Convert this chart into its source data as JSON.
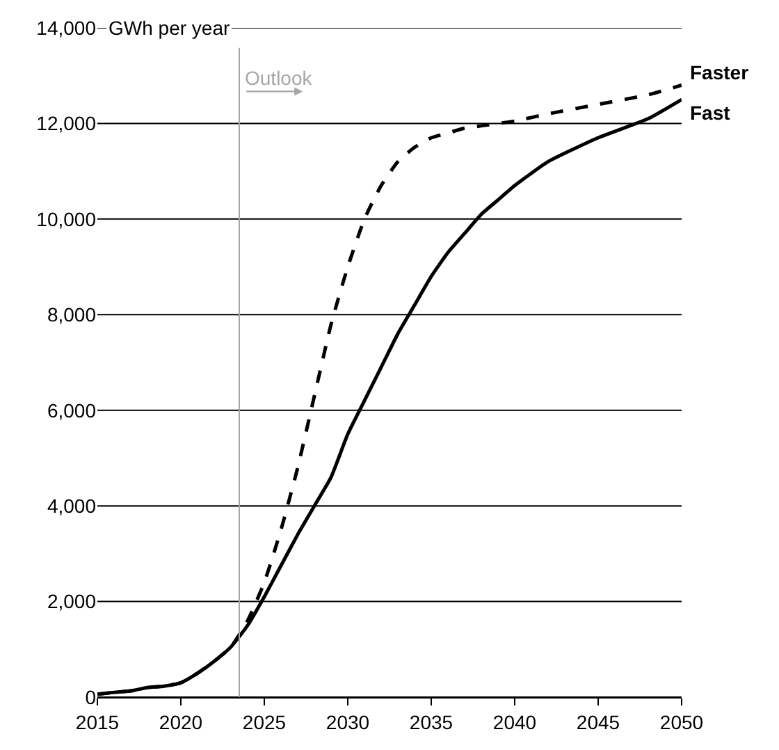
{
  "chart_data": {
    "type": "line",
    "ylabel": "GWh per year",
    "series": [
      {
        "name": "Faster",
        "color": "#000000",
        "line_style": "dashed",
        "x": [
          2015,
          2016,
          2017,
          2018,
          2019,
          2020,
          2021,
          2022,
          2023,
          2024,
          2025,
          2026,
          2027,
          2028,
          2029,
          2030,
          2031,
          2032,
          2033,
          2034,
          2035,
          2036,
          2037,
          2038,
          2040,
          2042,
          2045,
          2048,
          2050
        ],
        "values": [
          60,
          100,
          130,
          200,
          230,
          300,
          500,
          750,
          1050,
          1600,
          2400,
          3500,
          4800,
          6300,
          7800,
          9000,
          10000,
          10700,
          11200,
          11500,
          11700,
          11800,
          11900,
          11950,
          12050,
          12200,
          12400,
          12600,
          12800
        ]
      },
      {
        "name": "Fast",
        "color": "#000000",
        "line_style": "solid",
        "x": [
          2015,
          2016,
          2017,
          2018,
          2019,
          2020,
          2021,
          2022,
          2023,
          2024,
          2025,
          2026,
          2027,
          2028,
          2029,
          2030,
          2031,
          2032,
          2033,
          2034,
          2035,
          2036,
          2037,
          2038,
          2039,
          2040,
          2042,
          2045,
          2048,
          2050
        ],
        "values": [
          60,
          100,
          130,
          200,
          230,
          300,
          500,
          750,
          1050,
          1500,
          2100,
          2750,
          3400,
          4000,
          4600,
          5500,
          6200,
          6900,
          7600,
          8200,
          8800,
          9300,
          9700,
          10100,
          10400,
          10700,
          11200,
          11700,
          12100,
          12500
        ]
      }
    ],
    "xlim": [
      2015,
      2050
    ],
    "xticks": [
      2015,
      2020,
      2025,
      2030,
      2035,
      2040,
      2045,
      2050
    ],
    "ylim": [
      0,
      14000
    ],
    "yticks": [
      {
        "value": 0,
        "label": "0"
      },
      {
        "value": 2000,
        "label": "2,000"
      },
      {
        "value": 4000,
        "label": "4,000"
      },
      {
        "value": 6000,
        "label": "6,000"
      },
      {
        "value": 8000,
        "label": "8,000"
      },
      {
        "value": 10000,
        "label": "10,000"
      },
      {
        "value": 12000,
        "label": "12,000"
      },
      {
        "value": 14000,
        "label": "14,000"
      }
    ],
    "grid": "y",
    "legend": false,
    "ref_lines": [
      {
        "axis": "x",
        "value": 2023.5,
        "label": "Outlook",
        "color": "#a6a6a6"
      }
    ]
  }
}
